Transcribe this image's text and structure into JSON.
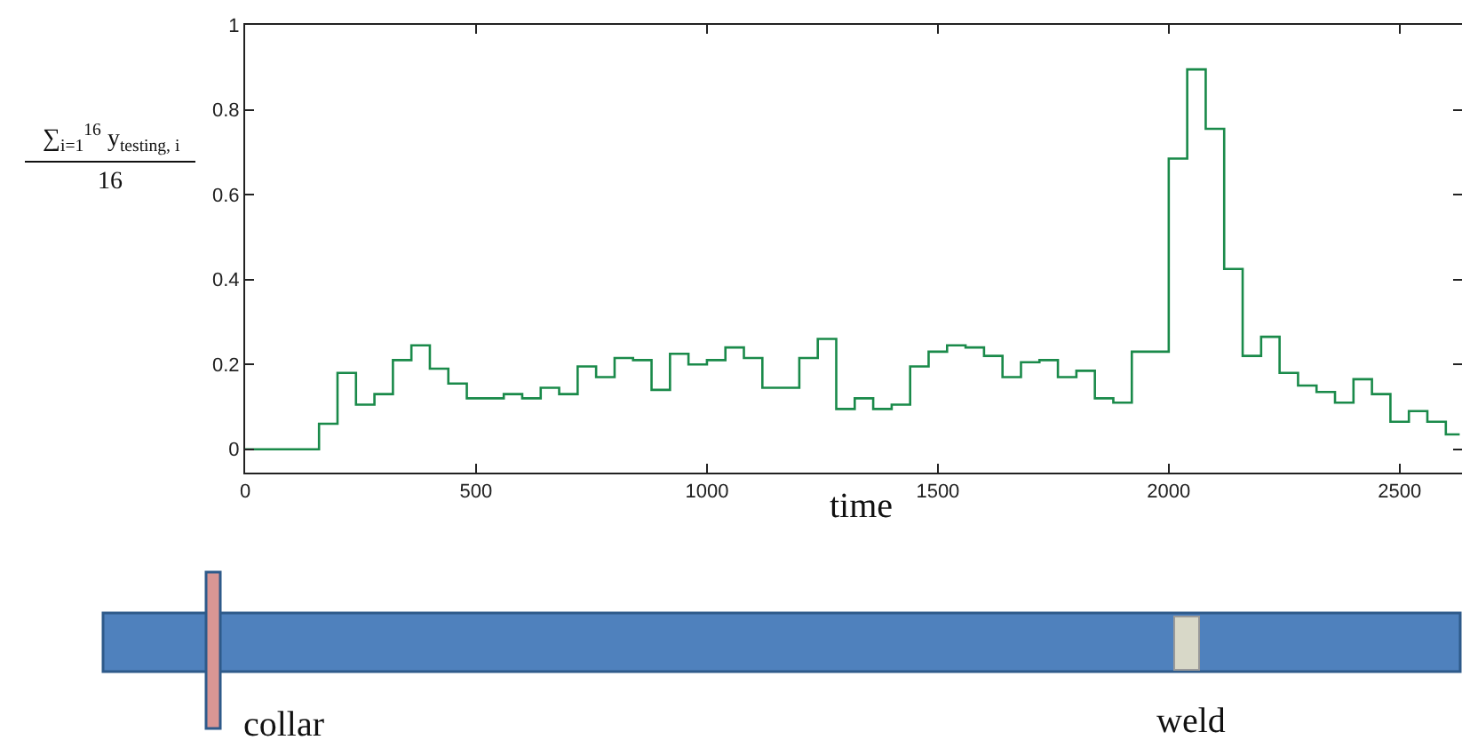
{
  "chart_data": {
    "type": "step",
    "xlabel": "time",
    "ylabel": "∑$_{i=1}$$^{16}$ y$_{testing, i}$\n16",
    "x": [
      0,
      80,
      160,
      200,
      240,
      280,
      320,
      360,
      400,
      440,
      480,
      520,
      560,
      600,
      640,
      680,
      720,
      760,
      800,
      840,
      880,
      920,
      960,
      1000,
      1040,
      1080,
      1120,
      1160,
      1200,
      1240,
      1280,
      1320,
      1360,
      1400,
      1440,
      1480,
      1520,
      1560,
      1600,
      1640,
      1680,
      1720,
      1760,
      1800,
      1840,
      1880,
      1920,
      1960,
      2000,
      2040,
      2080,
      2120,
      2160,
      2200,
      2240,
      2280,
      2320,
      2360,
      2400,
      2440,
      2480,
      2520,
      2560,
      2600,
      2630
    ],
    "series": [
      {
        "color": "#1a8a4a",
        "values": [
          0,
          0,
          0.06,
          0.18,
          0.105,
          0.13,
          0.21,
          0.245,
          0.19,
          0.155,
          0.12,
          0.12,
          0.13,
          0.12,
          0.145,
          0.13,
          0.195,
          0.17,
          0.215,
          0.21,
          0.14,
          0.225,
          0.2,
          0.21,
          0.24,
          0.215,
          0.145,
          0.145,
          0.215,
          0.26,
          0.095,
          0.12,
          0.095,
          0.105,
          0.195,
          0.23,
          0.245,
          0.24,
          0.22,
          0.17,
          0.205,
          0.21,
          0.17,
          0.185,
          0.12,
          0.11,
          0.23,
          0.23,
          0.685,
          0.895,
          0.755,
          0.425,
          0.22,
          0.265,
          0.18,
          0.15,
          0.135,
          0.11,
          0.165,
          0.13,
          0.065,
          0.09,
          0.065,
          0.035,
          0.035
        ]
      }
    ],
    "xlim": [
      0,
      2635
    ],
    "ylim": [
      -0.055,
      1
    ],
    "xticks": [
      0,
      500,
      1000,
      1500,
      2000,
      2500
    ],
    "yticks": [
      0,
      0.2,
      0.4,
      0.6,
      0.8,
      1
    ],
    "annotations": [
      "collar",
      "weld"
    ],
    "grid": false
  }
}
